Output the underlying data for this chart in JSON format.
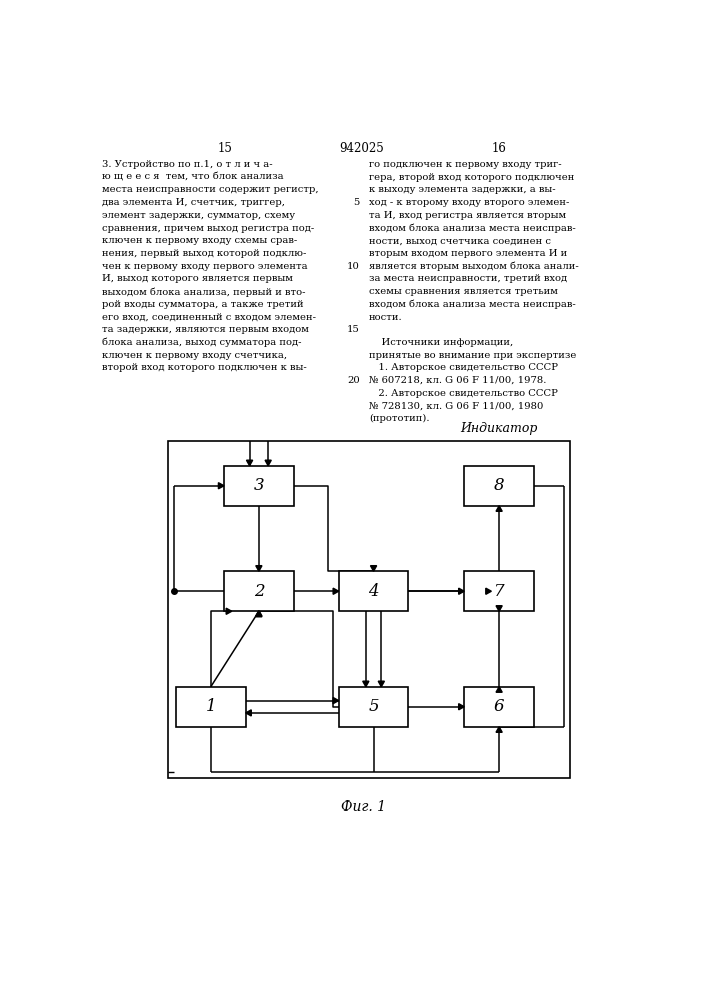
{
  "page_title": "942025",
  "page_left": "15",
  "page_right": "16",
  "col1_lines": [
    "3. Устройство по п.1, о т л и ч а-",
    "ю щ е е с я  тем, что блок анализа",
    "места неисправности содержит регистр,",
    "два элемента И, счетчик, триггер,",
    "элемент задержки, сумматор, схему",
    "сравнения, причем выход регистра под-",
    "ключен к первому входу схемы срав-",
    "нения, первый выход которой подклю-",
    "чен к первому входу первого элемента",
    "И, выход которого является первым",
    "выходом блока анализа, первый и вто-",
    "рой входы сумматора, а также третий",
    "его вход, соединенный с входом элемен-",
    "та задержки, являются первым входом",
    "блока анализа, выход сумматора под-",
    "ключен к первому входу счетчика,",
    "второй вход которого подключен к вы-"
  ],
  "col2_lines": [
    "го подключен к первому входу триг-",
    "гера, второй вход которого подключен",
    "к выходу элемента задержки, а вы-",
    "ход - к второму входу второго элемен-",
    "та И, вход регистра является вторым",
    "входом блока анализа места неисправ-",
    "ности, выход счетчика соединен с",
    "вторым входом первого элемента И и",
    "является вторым выходом блока анали-",
    "за места неисправности, третий вход",
    "схемы сравнения является третьим",
    "входом блока анализа места неисправ-",
    "ности."
  ],
  "line_nums": {
    "5": 3,
    "10": 8,
    "15": 13,
    "20": 17
  },
  "sources_header": "    Источники информации,",
  "sources_sub": "принятые во внимание при экспертизе",
  "source1a": "   1. Авторское свидетельство СССР",
  "source1b": "№ 607218, кл. G 06 F 11/00, 1978.",
  "source2a": "   2. Авторское свидетельство СССР",
  "source2b": "№ 728130, кл. G 06 F 11/00, 1980",
  "source2c": "(прототип).",
  "indicator_label": "Индикатор",
  "fig_label": "Фиг. 1"
}
